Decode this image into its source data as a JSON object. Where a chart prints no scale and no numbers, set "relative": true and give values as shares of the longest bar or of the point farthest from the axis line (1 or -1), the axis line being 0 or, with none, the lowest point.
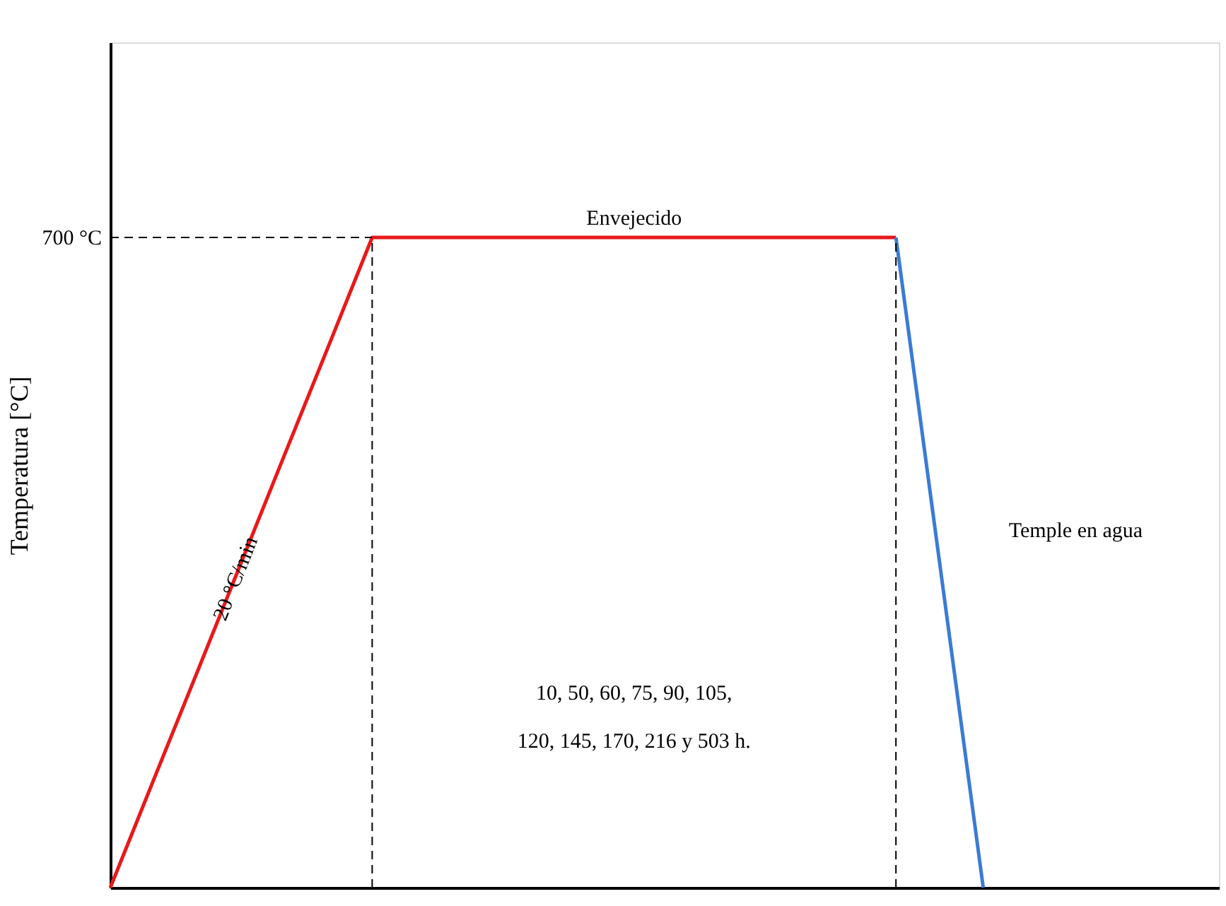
{
  "chart_data": {
    "type": "line",
    "relative": true,
    "ylabel": "Temperatura [°C]",
    "categories": [
      null,
      null,
      null,
      null,
      null,
      null,
      null,
      null,
      null,
      null,
      null,
      null,
      null,
      null,
      null,
      null,
      null,
      null,
      null,
      null,
      null
    ],
    "series": [
      {
        "color": "#e8191a",
        "values": [
          0,
          0.167,
          0.333,
          0.5,
          0.667,
          0.833,
          1,
          1,
          1,
          1,
          1,
          1,
          1,
          1,
          1,
          1,
          1,
          1,
          1,
          null,
          null
        ]
      },
      {
        "color": "#3a7bd5",
        "values": [
          null,
          null,
          null,
          null,
          null,
          null,
          null,
          null,
          null,
          null,
          null,
          null,
          null,
          null,
          null,
          null,
          null,
          null,
          1,
          0.5,
          0
        ]
      }
    ],
    "ref_lines": [
      {
        "axis": "y",
        "value": 1,
        "label": "700 °C",
        "line_style": "dashed",
        "color": "#000000"
      }
    ],
    "annotations": [
      "Envejecido",
      "20 °C/min",
      "Temple en agua",
      "10,  50,  60,  75,  90,  105,\n120, 145, 170, 216 y 503 h."
    ],
    "tick_labels": false,
    "grid": false,
    "marker": "none",
    "line_style": "solid"
  }
}
